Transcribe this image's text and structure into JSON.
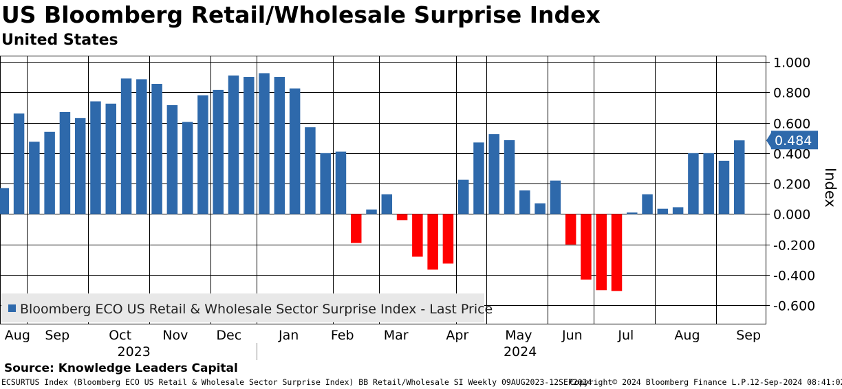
{
  "title": "US Bloomberg Retail/Wholesale Surprise Index",
  "subtitle": "United States",
  "source": "Source: Knowledge Leaders Capital",
  "footer": {
    "left": "ECSURTUS Index (Bloomberg ECO US Retail & Wholesale Sector Surprise Index) BB Retail/Wholesale SI  Weekly 09AUG2023-12SEP2024",
    "copyright": "Copyright© 2024 Bloomberg Finance L.P.",
    "timestamp": "12-Sep-2024 08:41:02"
  },
  "colors": {
    "positive": "#2e69ab",
    "negative": "#ff0000",
    "grid": "#000000",
    "label_bg": "#2e69ab",
    "legend_bg": "#e8e8e8"
  },
  "chart_data": {
    "type": "bar",
    "ylabel": "Index",
    "ylim": [
      -0.72,
      1.04
    ],
    "yticks": [
      "1.000",
      "0.800",
      "0.600",
      "0.400",
      "0.200",
      "0.000",
      "-0.200",
      "-0.400",
      "-0.600"
    ],
    "ytick_values": [
      1.0,
      0.8,
      0.6,
      0.4,
      0.2,
      0.0,
      -0.2,
      -0.4,
      -0.6
    ],
    "legend": "Bloomberg ECO US Retail & Wholesale Sector Surprise Index - Last Price",
    "last_value_label": "0.484",
    "last_value": 0.484,
    "values": [
      0.17,
      0.66,
      0.475,
      0.54,
      0.67,
      0.63,
      0.74,
      0.725,
      0.89,
      0.885,
      0.855,
      0.715,
      0.605,
      0.78,
      0.815,
      0.91,
      0.9,
      0.925,
      0.9,
      0.825,
      0.57,
      0.4,
      0.41,
      -0.19,
      0.03,
      0.13,
      -0.04,
      -0.28,
      -0.365,
      -0.325,
      0.225,
      0.47,
      0.525,
      0.485,
      0.155,
      0.07,
      0.22,
      -0.2,
      -0.43,
      -0.5,
      -0.505,
      0.01,
      0.13,
      0.035,
      0.045,
      0.4,
      0.4,
      0.35,
      0.484
    ],
    "month_labels": [
      {
        "label": "Aug",
        "index": 0.9
      },
      {
        "label": "Sep",
        "index": 3.5
      },
      {
        "label": "Oct",
        "index": 7.6
      },
      {
        "label": "Nov",
        "index": 11.2
      },
      {
        "label": "Dec",
        "index": 14.7
      },
      {
        "label": "Jan",
        "index": 18.6
      },
      {
        "label": "Feb",
        "index": 22.1
      },
      {
        "label": "Mar",
        "index": 25.6
      },
      {
        "label": "Apr",
        "index": 29.6
      },
      {
        "label": "May",
        "index": 33.6
      },
      {
        "label": "Jun",
        "index": 37.1
      },
      {
        "label": "Jul",
        "index": 40.6
      },
      {
        "label": "Aug",
        "index": 44.6
      },
      {
        "label": "Sep",
        "index": 48.6
      }
    ],
    "month_gridlines": [
      1.5,
      5.5,
      9.5,
      13.5,
      16.5,
      21.5,
      24.5,
      29.5,
      31.5,
      35.5,
      38.5,
      42.5,
      46.5
    ],
    "year_labels": [
      {
        "label": "2023",
        "index": 8.5
      },
      {
        "label": "2024",
        "index": 33.7
      }
    ],
    "year_divider_index": 16.5
  }
}
